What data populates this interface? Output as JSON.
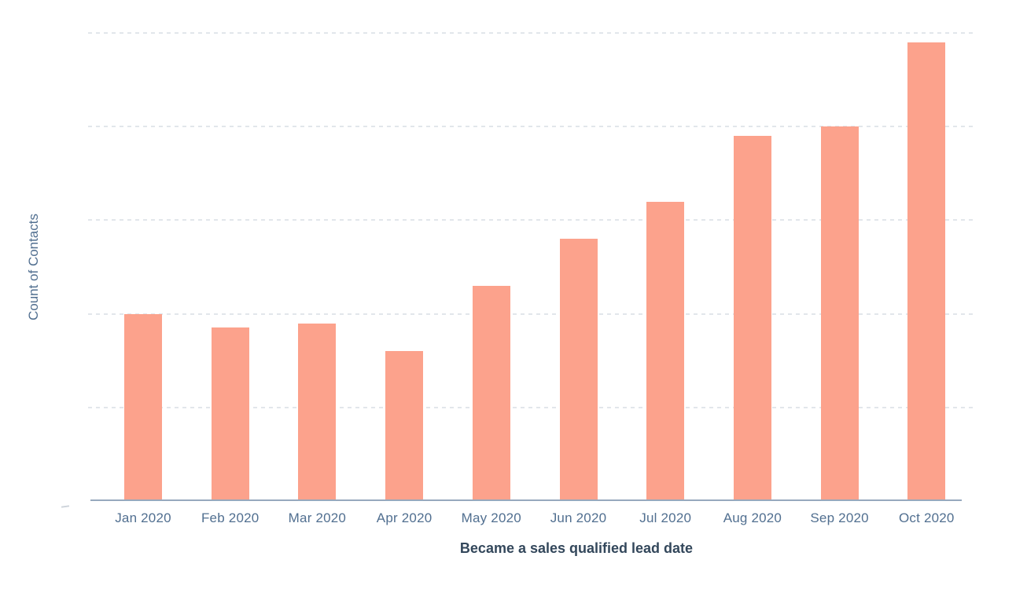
{
  "chart_data": {
    "type": "bar",
    "title": "",
    "xlabel": "Became a sales qualified lead date",
    "ylabel": "Count of Contacts",
    "categories": [
      "Jan 2020",
      "Feb 2020",
      "Mar 2020",
      "Apr 2020",
      "May 2020",
      "Jun 2020",
      "Jul 2020",
      "Aug 2020",
      "Sep 2020",
      "Oct 2020"
    ],
    "values": [
      40,
      37,
      38,
      32,
      46,
      56,
      64,
      78,
      80,
      98
    ],
    "value_note": "y-axis has no visible tick labels; values estimated from gridlines (one gridline interval = 20 units)",
    "ylim": [
      0,
      107
    ],
    "gridline_values": [
      20,
      40,
      60,
      80,
      100
    ],
    "grid_style": "horizontal dashed",
    "y_tick_labels_visible": false,
    "legend": "none",
    "colors": {
      "bar": "#FCA28C",
      "axis_line": "#97A9BE",
      "tick_label": "#516F90",
      "axis_title": "#33475B",
      "gridline": "#E2E6EB",
      "background": "#FFFFFF"
    }
  }
}
